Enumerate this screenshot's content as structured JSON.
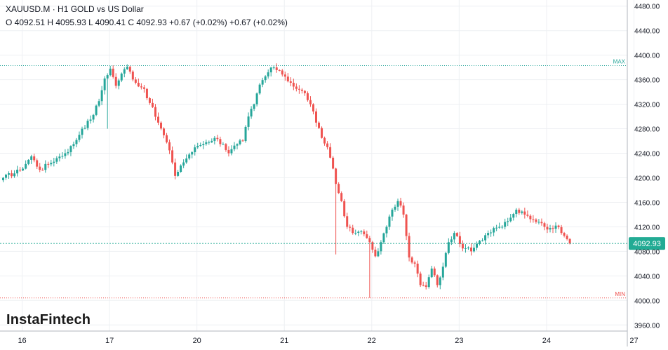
{
  "header": {
    "symbol": "XAUUSD.M",
    "separator": "·",
    "interval": "H1",
    "description": "GOLD vs US Dollar",
    "ohlc_text": "O 4092.51 H 4095.93 L 4090.41 C 4092.93 +0.67 (+0.02%) +0.67 (+0.02%)"
  },
  "brand": {
    "logo_text": "InstaFintech"
  },
  "markers": {
    "max_label": "MAX",
    "min_label": "MIN"
  },
  "colors": {
    "up": "#26a69a",
    "down": "#ef5350",
    "current_price": "#22ab94",
    "max_line": "#26a69a",
    "min_line": "#ef5350",
    "grid": "#eef0f3",
    "text": "#131722"
  },
  "chart_data": {
    "type": "candlestick",
    "timeframe": "H1",
    "ylim": [
      3950,
      4490
    ],
    "grid": true,
    "y_ticks": [
      3960,
      4000,
      4040,
      4080,
      4120,
      4160,
      4200,
      4240,
      4280,
      4320,
      4360,
      4400,
      4440,
      4480
    ],
    "y_tick_labels": [
      "3960.00",
      "4000.00",
      "4040.00",
      "4080.00",
      "4120.00",
      "4160.00",
      "4200.00",
      "4240.00",
      "4280.00",
      "4320.00",
      "4360.00",
      "4400.00",
      "4440.00",
      "4480.00"
    ],
    "x_ticks": [
      {
        "label": "16",
        "bar": 4
      },
      {
        "label": "17",
        "bar": 35
      },
      {
        "label": "20",
        "bar": 66
      },
      {
        "label": "21",
        "bar": 97
      },
      {
        "label": "22",
        "bar": 128
      },
      {
        "label": "23",
        "bar": 159
      },
      {
        "label": "24",
        "bar": 190
      },
      {
        "label": "27",
        "bar": 221
      }
    ],
    "current_price": 4092.93,
    "current_price_label": "4092.93",
    "max_price": 4383,
    "min_price": 4004,
    "anchors": [
      [
        0,
        4200
      ],
      [
        6,
        4212
      ],
      [
        10,
        4235
      ],
      [
        13,
        4213
      ],
      [
        16,
        4222
      ],
      [
        19,
        4232
      ],
      [
        22,
        4240
      ],
      [
        25,
        4255
      ],
      [
        28,
        4280
      ],
      [
        31,
        4295
      ],
      [
        34,
        4325
      ],
      [
        36,
        4362
      ],
      [
        38,
        4378
      ],
      [
        40,
        4350
      ],
      [
        42,
        4370
      ],
      [
        44,
        4381
      ],
      [
        47,
        4355
      ],
      [
        50,
        4345
      ],
      [
        52,
        4322
      ],
      [
        55,
        4290
      ],
      [
        58,
        4258
      ],
      [
        60,
        4225
      ],
      [
        61,
        4203
      ],
      [
        63,
        4220
      ],
      [
        66,
        4238
      ],
      [
        69,
        4252
      ],
      [
        72,
        4258
      ],
      [
        75,
        4265
      ],
      [
        78,
        4255
      ],
      [
        80,
        4240
      ],
      [
        83,
        4255
      ],
      [
        85,
        4260
      ],
      [
        87,
        4300
      ],
      [
        89,
        4320
      ],
      [
        91,
        4352
      ],
      [
        94,
        4372
      ],
      [
        96,
        4380
      ],
      [
        98,
        4375
      ],
      [
        100,
        4365
      ],
      [
        102,
        4355
      ],
      [
        104,
        4345
      ],
      [
        107,
        4338
      ],
      [
        109,
        4320
      ],
      [
        111,
        4290
      ],
      [
        113,
        4265
      ],
      [
        115,
        4250
      ],
      [
        117,
        4215
      ],
      [
        118,
        4190
      ],
      [
        120,
        4162
      ],
      [
        122,
        4120
      ],
      [
        124,
        4110
      ],
      [
        126,
        4112
      ],
      [
        128,
        4108
      ],
      [
        130,
        4095
      ],
      [
        132,
        4072
      ],
      [
        134,
        4095
      ],
      [
        136,
        4120
      ],
      [
        138,
        4148
      ],
      [
        140,
        4162
      ],
      [
        142,
        4140
      ],
      [
        143,
        4105
      ],
      [
        144,
        4070
      ],
      [
        146,
        4060
      ],
      [
        148,
        4025
      ],
      [
        150,
        4022
      ],
      [
        152,
        4052
      ],
      [
        154,
        4025
      ],
      [
        156,
        4055
      ],
      [
        158,
        4095
      ],
      [
        160,
        4110
      ],
      [
        162,
        4092
      ],
      [
        164,
        4085
      ],
      [
        166,
        4080
      ],
      [
        168,
        4092
      ],
      [
        170,
        4098
      ],
      [
        172,
        4110
      ],
      [
        174,
        4118
      ],
      [
        176,
        4120
      ],
      [
        178,
        4128
      ],
      [
        180,
        4135
      ],
      [
        182,
        4148
      ],
      [
        184,
        4145
      ],
      [
        186,
        4138
      ],
      [
        188,
        4132
      ],
      [
        190,
        4128
      ],
      [
        192,
        4120
      ],
      [
        194,
        4118
      ],
      [
        196,
        4122
      ],
      [
        198,
        4110
      ],
      [
        200,
        4100
      ],
      [
        201,
        4092.93
      ]
    ]
  }
}
